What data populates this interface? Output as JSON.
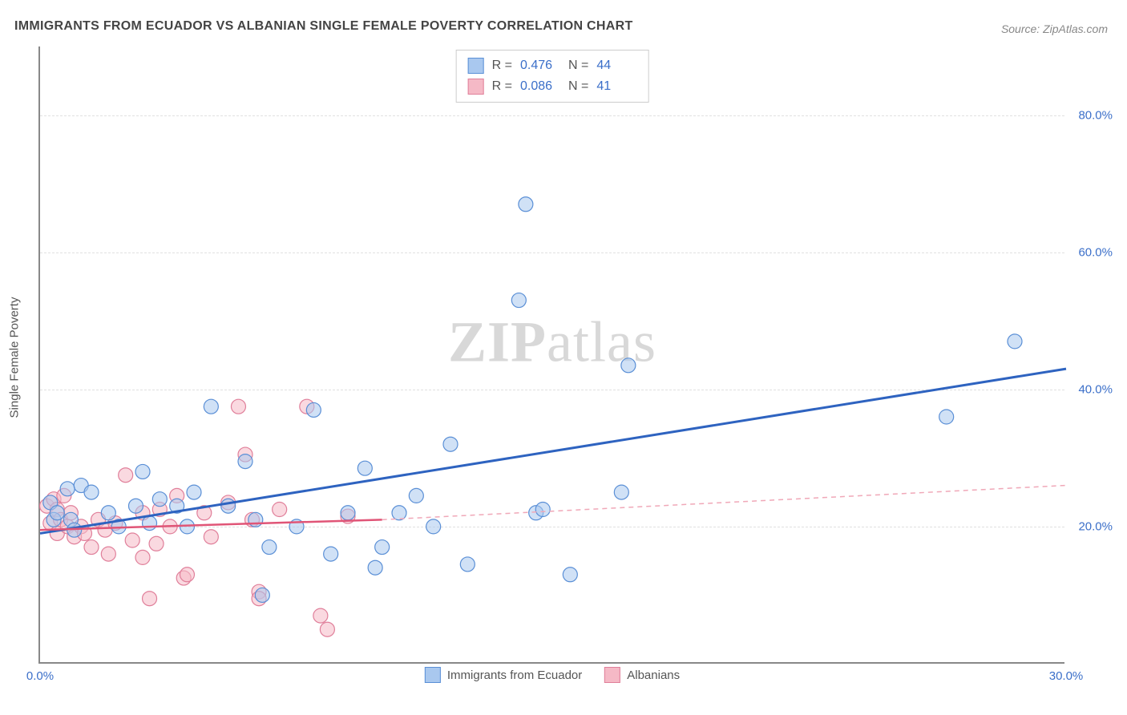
{
  "title": "IMMIGRANTS FROM ECUADOR VS ALBANIAN SINGLE FEMALE POVERTY CORRELATION CHART",
  "source": "Source: ZipAtlas.com",
  "watermark_zip": "ZIP",
  "watermark_atlas": "atlas",
  "y_axis_title": "Single Female Poverty",
  "chart": {
    "type": "scatter",
    "background_color": "#ffffff",
    "grid_color": "#e0e0e0",
    "axis_color": "#888888",
    "xlim": [
      0,
      30
    ],
    "ylim": [
      0,
      90
    ],
    "x_ticks": [
      0.0,
      30.0
    ],
    "x_tick_labels": [
      "0.0%",
      "30.0%"
    ],
    "y_ticks": [
      20.0,
      40.0,
      60.0,
      80.0
    ],
    "y_tick_labels": [
      "20.0%",
      "40.0%",
      "60.0%",
      "80.0%"
    ],
    "marker_radius": 9,
    "marker_opacity": 0.55,
    "marker_stroke_width": 1.2,
    "title_fontsize": 16,
    "label_fontsize": 15,
    "tick_color": "#3b6fc9"
  },
  "stat_box": {
    "rows": [
      {
        "swatch_fill": "#a9c8ef",
        "swatch_stroke": "#5a8fd6",
        "r_label": "R =",
        "r": "0.476",
        "n_label": "N =",
        "n": "44"
      },
      {
        "swatch_fill": "#f5b9c6",
        "swatch_stroke": "#e07f9a",
        "r_label": "R =",
        "r": "0.086",
        "n_label": "N =",
        "n": "41"
      }
    ]
  },
  "bottom_legend": {
    "items": [
      {
        "swatch_fill": "#a9c8ef",
        "swatch_stroke": "#5a8fd6",
        "label": "Immigrants from Ecuador"
      },
      {
        "swatch_fill": "#f5b9c6",
        "swatch_stroke": "#e07f9a",
        "label": "Albanians"
      }
    ]
  },
  "series": [
    {
      "name": "Immigrants from Ecuador",
      "color_fill": "#a9c8ef",
      "color_stroke": "#5a8fd6",
      "trend": {
        "solid": {
          "x1": 0,
          "y1": 19,
          "x2": 30,
          "y2": 43,
          "color": "#2e63c0",
          "width": 3
        },
        "dashed": null
      },
      "points": [
        {
          "x": 0.3,
          "y": 23.5
        },
        {
          "x": 0.4,
          "y": 21.0
        },
        {
          "x": 0.5,
          "y": 22.0
        },
        {
          "x": 0.8,
          "y": 25.5
        },
        {
          "x": 0.9,
          "y": 21.0
        },
        {
          "x": 1.0,
          "y": 19.5
        },
        {
          "x": 1.2,
          "y": 26.0
        },
        {
          "x": 1.5,
          "y": 25.0
        },
        {
          "x": 2.0,
          "y": 22.0
        },
        {
          "x": 2.3,
          "y": 20.0
        },
        {
          "x": 2.8,
          "y": 23.0
        },
        {
          "x": 3.0,
          "y": 28.0
        },
        {
          "x": 3.2,
          "y": 20.5
        },
        {
          "x": 3.5,
          "y": 24.0
        },
        {
          "x": 4.0,
          "y": 23.0
        },
        {
          "x": 4.3,
          "y": 20.0
        },
        {
          "x": 4.5,
          "y": 25.0
        },
        {
          "x": 5.0,
          "y": 37.5
        },
        {
          "x": 5.5,
          "y": 23.0
        },
        {
          "x": 6.0,
          "y": 29.5
        },
        {
          "x": 6.3,
          "y": 21.0
        },
        {
          "x": 6.5,
          "y": 10.0
        },
        {
          "x": 6.7,
          "y": 17.0
        },
        {
          "x": 7.5,
          "y": 20.0
        },
        {
          "x": 8.0,
          "y": 37.0
        },
        {
          "x": 8.5,
          "y": 16.0
        },
        {
          "x": 9.0,
          "y": 22.0
        },
        {
          "x": 9.5,
          "y": 28.5
        },
        {
          "x": 9.8,
          "y": 14.0
        },
        {
          "x": 10.0,
          "y": 17.0
        },
        {
          "x": 10.5,
          "y": 22.0
        },
        {
          "x": 11.0,
          "y": 24.5
        },
        {
          "x": 11.5,
          "y": 20.0
        },
        {
          "x": 12.0,
          "y": 32.0
        },
        {
          "x": 12.5,
          "y": 14.5
        },
        {
          "x": 14.0,
          "y": 53.0
        },
        {
          "x": 14.2,
          "y": 67.0
        },
        {
          "x": 14.5,
          "y": 22.0
        },
        {
          "x": 15.5,
          "y": 13.0
        },
        {
          "x": 17.0,
          "y": 25.0
        },
        {
          "x": 17.2,
          "y": 43.5
        },
        {
          "x": 26.5,
          "y": 36.0
        },
        {
          "x": 28.5,
          "y": 47.0
        },
        {
          "x": 14.7,
          "y": 22.5
        }
      ]
    },
    {
      "name": "Albanians",
      "color_fill": "#f5b9c6",
      "color_stroke": "#e07f9a",
      "trend": {
        "solid": {
          "x1": 0,
          "y1": 19.5,
          "x2": 10,
          "y2": 21,
          "color": "#e05577",
          "width": 2.5
        },
        "dashed": {
          "x1": 10,
          "y1": 21,
          "x2": 30,
          "y2": 26,
          "color": "#f0a8b8",
          "width": 1.5,
          "dash": "6,5"
        }
      },
      "points": [
        {
          "x": 0.2,
          "y": 23.0
        },
        {
          "x": 0.3,
          "y": 20.5
        },
        {
          "x": 0.4,
          "y": 24.0
        },
        {
          "x": 0.5,
          "y": 22.5
        },
        {
          "x": 0.5,
          "y": 19.0
        },
        {
          "x": 0.6,
          "y": 21.0
        },
        {
          "x": 0.7,
          "y": 24.5
        },
        {
          "x": 0.8,
          "y": 20.0
        },
        {
          "x": 0.9,
          "y": 22.0
        },
        {
          "x": 1.0,
          "y": 18.5
        },
        {
          "x": 1.2,
          "y": 20.0
        },
        {
          "x": 1.3,
          "y": 19.0
        },
        {
          "x": 1.5,
          "y": 17.0
        },
        {
          "x": 1.7,
          "y": 21.0
        },
        {
          "x": 1.9,
          "y": 19.5
        },
        {
          "x": 2.0,
          "y": 16.0
        },
        {
          "x": 2.2,
          "y": 20.5
        },
        {
          "x": 2.5,
          "y": 27.5
        },
        {
          "x": 2.7,
          "y": 18.0
        },
        {
          "x": 3.0,
          "y": 15.5
        },
        {
          "x": 3.0,
          "y": 22.0
        },
        {
          "x": 3.2,
          "y": 9.5
        },
        {
          "x": 3.4,
          "y": 17.5
        },
        {
          "x": 3.5,
          "y": 22.5
        },
        {
          "x": 3.8,
          "y": 20.0
        },
        {
          "x": 4.0,
          "y": 24.5
        },
        {
          "x": 4.2,
          "y": 12.5
        },
        {
          "x": 4.3,
          "y": 13.0
        },
        {
          "x": 4.8,
          "y": 22.0
        },
        {
          "x": 5.0,
          "y": 18.5
        },
        {
          "x": 5.5,
          "y": 23.5
        },
        {
          "x": 5.8,
          "y": 37.5
        },
        {
          "x": 6.0,
          "y": 30.5
        },
        {
          "x": 6.2,
          "y": 21.0
        },
        {
          "x": 6.4,
          "y": 10.5
        },
        {
          "x": 6.4,
          "y": 9.5
        },
        {
          "x": 7.0,
          "y": 22.5
        },
        {
          "x": 7.8,
          "y": 37.5
        },
        {
          "x": 8.2,
          "y": 7.0
        },
        {
          "x": 8.4,
          "y": 5.0
        },
        {
          "x": 9.0,
          "y": 21.5
        }
      ]
    }
  ]
}
